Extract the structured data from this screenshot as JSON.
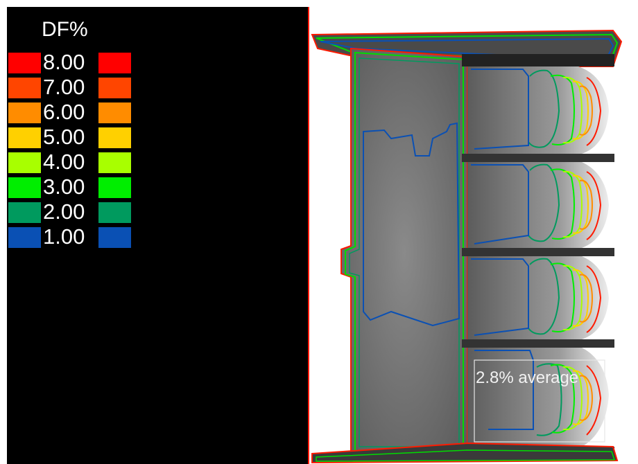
{
  "legend": {
    "title": "DF%",
    "items": [
      {
        "label": "8.00",
        "color": "#ff0000"
      },
      {
        "label": "7.00",
        "color": "#ff4500"
      },
      {
        "label": "6.00",
        "color": "#ff8c00"
      },
      {
        "label": "5.00",
        "color": "#ffd000"
      },
      {
        "label": "4.00",
        "color": "#a8ff00"
      },
      {
        "label": "3.00",
        "color": "#00ee00"
      },
      {
        "label": "2.00",
        "color": "#009a5e"
      },
      {
        "label": "1.00",
        "color": "#0a50b4"
      }
    ]
  },
  "plan": {
    "average_label": "2.8% average"
  }
}
